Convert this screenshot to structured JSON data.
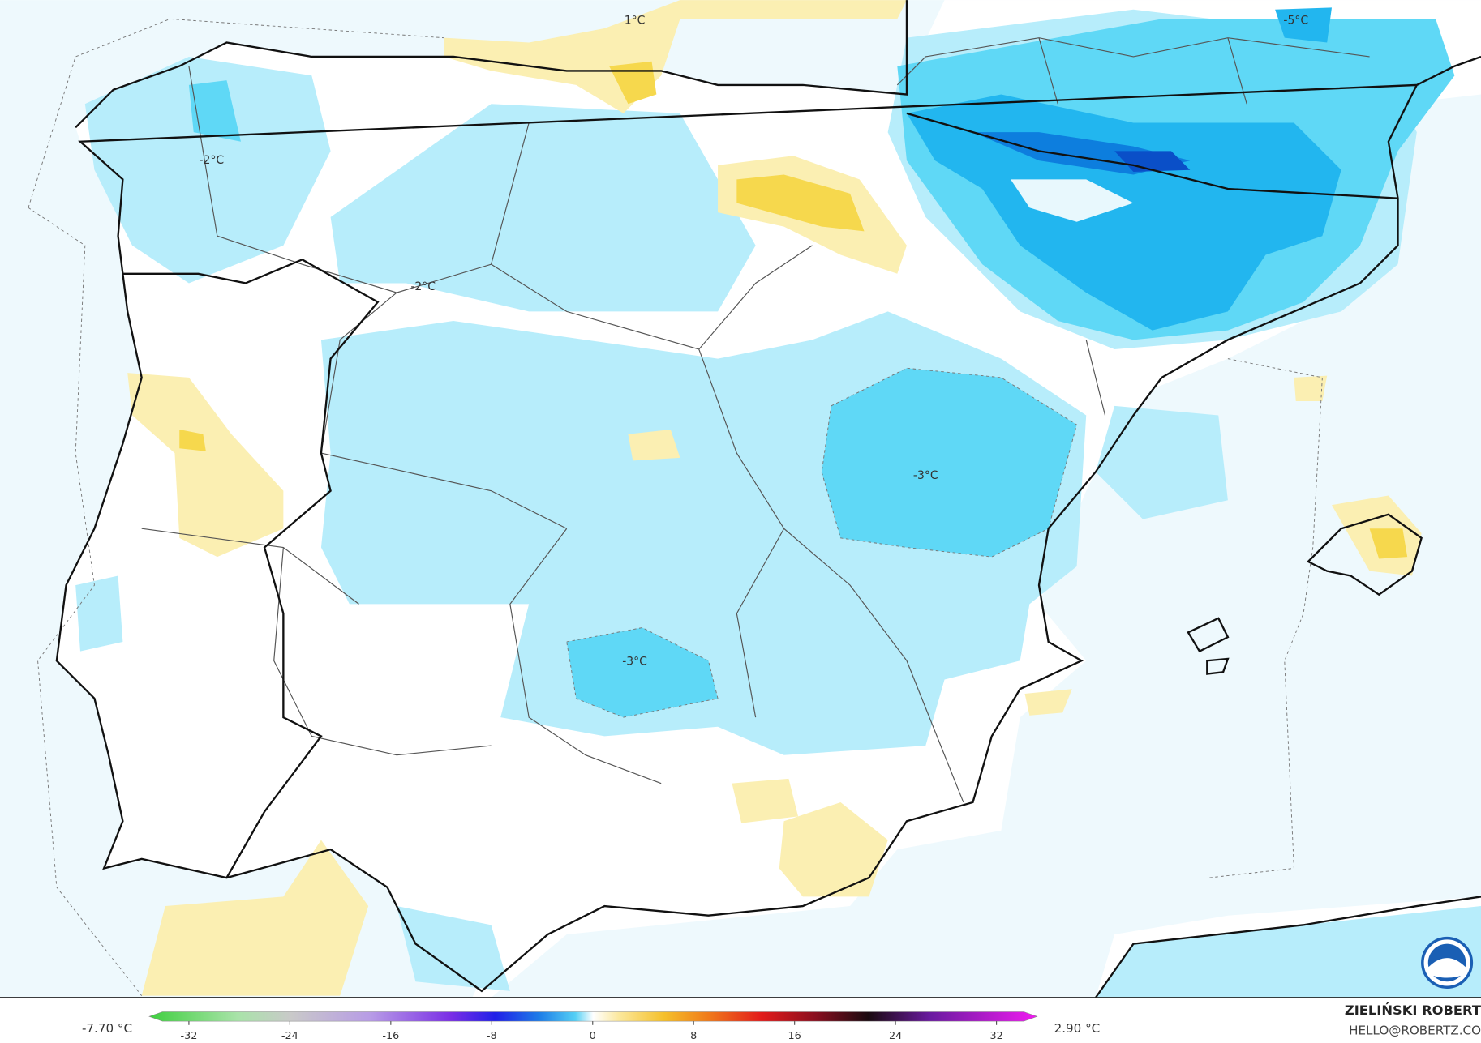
{
  "map": {
    "contour_labels": [
      "1°C",
      "-5°C",
      "-2°C",
      "-2°C",
      "-3°C",
      "-3°C"
    ]
  },
  "legend": {
    "min_label": "-7.70 °C",
    "max_label": "2.90 °C",
    "ticks": [
      -32,
      -24,
      -16,
      -8,
      0,
      8,
      16,
      24,
      32
    ]
  },
  "credit": {
    "name": "ZIELIŃSKI ROBERT",
    "email": "HELLO@ROBERTZ.CO"
  }
}
